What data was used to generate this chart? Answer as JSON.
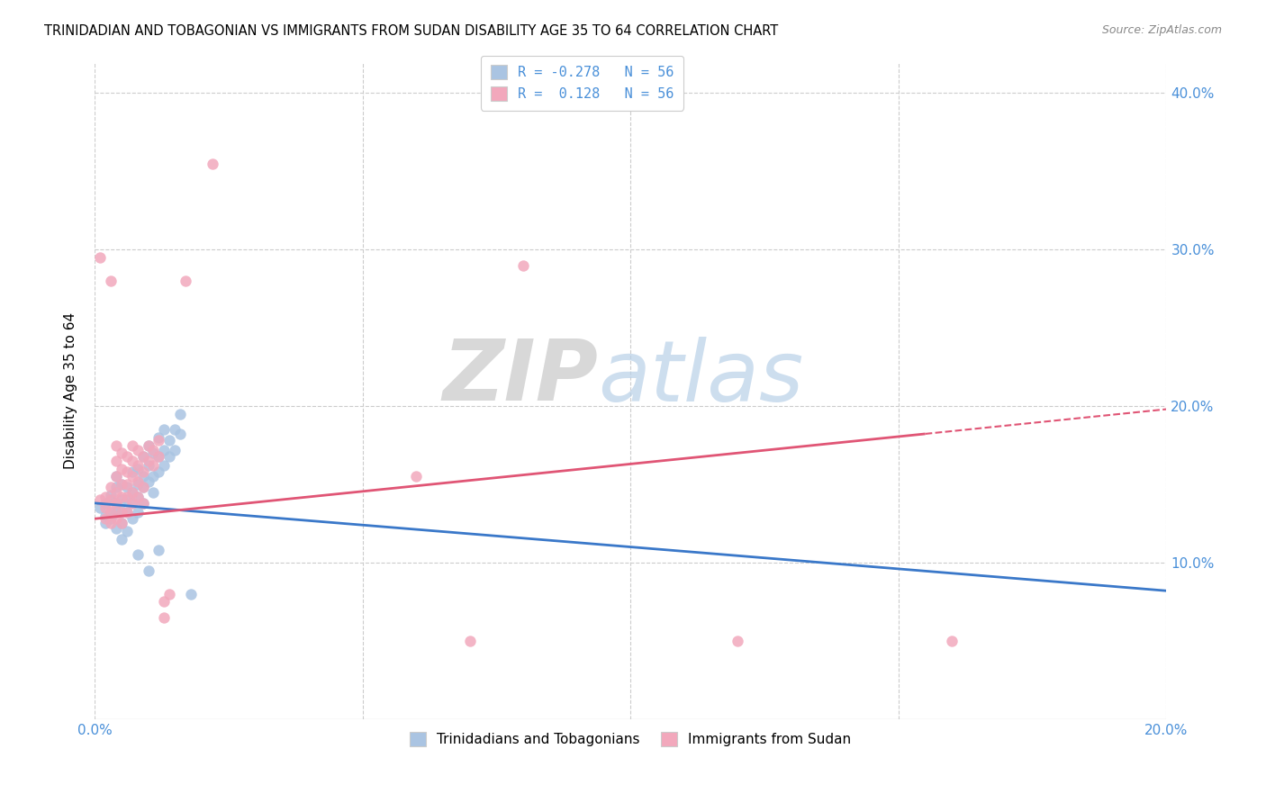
{
  "title": "TRINIDADIAN AND TOBAGONIAN VS IMMIGRANTS FROM SUDAN DISABILITY AGE 35 TO 64 CORRELATION CHART",
  "source": "Source: ZipAtlas.com",
  "ylabel": "Disability Age 35 to 64",
  "xlim": [
    0.0,
    0.2
  ],
  "ylim": [
    0.0,
    0.42
  ],
  "blue_color": "#aac4e2",
  "pink_color": "#f2a8bc",
  "blue_line_color": "#3a78c9",
  "pink_line_color": "#e05575",
  "legend_R_blue": "-0.278",
  "legend_R_pink": " 0.128",
  "legend_N": "56",
  "blue_scatter": [
    [
      0.001,
      0.135
    ],
    [
      0.002,
      0.138
    ],
    [
      0.002,
      0.13
    ],
    [
      0.002,
      0.125
    ],
    [
      0.003,
      0.143
    ],
    [
      0.003,
      0.132
    ],
    [
      0.003,
      0.128
    ],
    [
      0.003,
      0.14
    ],
    [
      0.004,
      0.148
    ],
    [
      0.004,
      0.138
    ],
    [
      0.004,
      0.132
    ],
    [
      0.004,
      0.122
    ],
    [
      0.004,
      0.155
    ],
    [
      0.005,
      0.15
    ],
    [
      0.005,
      0.14
    ],
    [
      0.005,
      0.133
    ],
    [
      0.005,
      0.125
    ],
    [
      0.005,
      0.115
    ],
    [
      0.006,
      0.148
    ],
    [
      0.006,
      0.14
    ],
    [
      0.006,
      0.132
    ],
    [
      0.006,
      0.12
    ],
    [
      0.007,
      0.158
    ],
    [
      0.007,
      0.145
    ],
    [
      0.007,
      0.138
    ],
    [
      0.007,
      0.128
    ],
    [
      0.008,
      0.16
    ],
    [
      0.008,
      0.15
    ],
    [
      0.008,
      0.142
    ],
    [
      0.008,
      0.132
    ],
    [
      0.009,
      0.168
    ],
    [
      0.009,
      0.155
    ],
    [
      0.009,
      0.148
    ],
    [
      0.009,
      0.138
    ],
    [
      0.01,
      0.175
    ],
    [
      0.01,
      0.162
    ],
    [
      0.01,
      0.152
    ],
    [
      0.011,
      0.17
    ],
    [
      0.011,
      0.155
    ],
    [
      0.011,
      0.145
    ],
    [
      0.012,
      0.18
    ],
    [
      0.012,
      0.168
    ],
    [
      0.012,
      0.158
    ],
    [
      0.013,
      0.185
    ],
    [
      0.013,
      0.172
    ],
    [
      0.013,
      0.162
    ],
    [
      0.014,
      0.178
    ],
    [
      0.014,
      0.168
    ],
    [
      0.015,
      0.185
    ],
    [
      0.015,
      0.172
    ],
    [
      0.016,
      0.195
    ],
    [
      0.016,
      0.182
    ],
    [
      0.008,
      0.105
    ],
    [
      0.01,
      0.095
    ],
    [
      0.012,
      0.108
    ],
    [
      0.018,
      0.08
    ]
  ],
  "pink_scatter": [
    [
      0.001,
      0.295
    ],
    [
      0.001,
      0.14
    ],
    [
      0.002,
      0.142
    ],
    [
      0.002,
      0.135
    ],
    [
      0.002,
      0.128
    ],
    [
      0.003,
      0.28
    ],
    [
      0.003,
      0.148
    ],
    [
      0.003,
      0.14
    ],
    [
      0.003,
      0.133
    ],
    [
      0.003,
      0.125
    ],
    [
      0.004,
      0.175
    ],
    [
      0.004,
      0.165
    ],
    [
      0.004,
      0.155
    ],
    [
      0.004,
      0.145
    ],
    [
      0.004,
      0.138
    ],
    [
      0.004,
      0.128
    ],
    [
      0.005,
      0.17
    ],
    [
      0.005,
      0.16
    ],
    [
      0.005,
      0.15
    ],
    [
      0.005,
      0.142
    ],
    [
      0.005,
      0.132
    ],
    [
      0.005,
      0.125
    ],
    [
      0.006,
      0.168
    ],
    [
      0.006,
      0.158
    ],
    [
      0.006,
      0.15
    ],
    [
      0.006,
      0.142
    ],
    [
      0.006,
      0.132
    ],
    [
      0.007,
      0.175
    ],
    [
      0.007,
      0.165
    ],
    [
      0.007,
      0.155
    ],
    [
      0.007,
      0.145
    ],
    [
      0.007,
      0.138
    ],
    [
      0.008,
      0.172
    ],
    [
      0.008,
      0.162
    ],
    [
      0.008,
      0.152
    ],
    [
      0.008,
      0.142
    ],
    [
      0.009,
      0.168
    ],
    [
      0.009,
      0.158
    ],
    [
      0.009,
      0.148
    ],
    [
      0.009,
      0.138
    ],
    [
      0.01,
      0.175
    ],
    [
      0.01,
      0.165
    ],
    [
      0.011,
      0.172
    ],
    [
      0.011,
      0.162
    ],
    [
      0.012,
      0.178
    ],
    [
      0.012,
      0.168
    ],
    [
      0.013,
      0.075
    ],
    [
      0.013,
      0.065
    ],
    [
      0.014,
      0.08
    ],
    [
      0.017,
      0.28
    ],
    [
      0.022,
      0.355
    ],
    [
      0.08,
      0.29
    ],
    [
      0.06,
      0.155
    ],
    [
      0.07,
      0.05
    ],
    [
      0.12,
      0.05
    ],
    [
      0.16,
      0.05
    ]
  ],
  "blue_line": [
    [
      0.0,
      0.138
    ],
    [
      0.2,
      0.082
    ]
  ],
  "pink_line": [
    [
      0.0,
      0.128
    ],
    [
      0.2,
      0.198
    ]
  ],
  "pink_line_solid_end": 0.155
}
